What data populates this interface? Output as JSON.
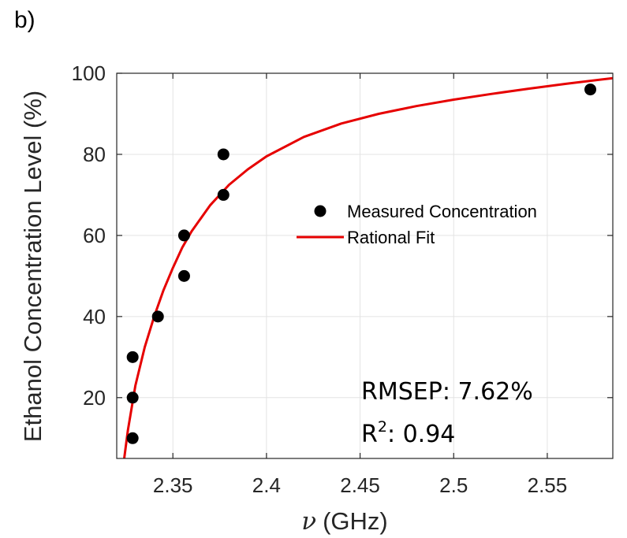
{
  "panel_label": "b)",
  "chart_data": {
    "type": "scatter",
    "xlabel": "(GHz)",
    "xlabel_symbol": "ν",
    "ylabel": "Ethanol Concentration Level (%)",
    "xlim": [
      2.32,
      2.585
    ],
    "ylim": [
      5,
      100
    ],
    "xticks": [
      "2.35",
      "2.4",
      "2.45",
      "2.5",
      "2.55"
    ],
    "yticks": [
      "20",
      "40",
      "60",
      "80",
      "100"
    ],
    "xtick_values": [
      2.35,
      2.4,
      2.45,
      2.5,
      2.55
    ],
    "ytick_values": [
      20,
      40,
      60,
      80,
      100
    ],
    "grid": true,
    "legend_position": "right",
    "series": [
      {
        "name": "Measured Concentration",
        "kind": "points",
        "color": "#000000",
        "points": [
          {
            "x": 2.3285,
            "y": 10
          },
          {
            "x": 2.3285,
            "y": 20
          },
          {
            "x": 2.3285,
            "y": 30
          },
          {
            "x": 2.342,
            "y": 40
          },
          {
            "x": 2.356,
            "y": 50
          },
          {
            "x": 2.356,
            "y": 60
          },
          {
            "x": 2.377,
            "y": 70
          },
          {
            "x": 2.377,
            "y": 80
          },
          {
            "x": 2.573,
            "y": 96
          }
        ]
      },
      {
        "name": "Rational Fit",
        "kind": "line",
        "color": "#e60000",
        "points": [
          {
            "x": 2.324,
            "y": 5
          },
          {
            "x": 2.326,
            "y": 12
          },
          {
            "x": 2.33,
            "y": 23
          },
          {
            "x": 2.335,
            "y": 32.5
          },
          {
            "x": 2.34,
            "y": 40
          },
          {
            "x": 2.345,
            "y": 46.5
          },
          {
            "x": 2.35,
            "y": 52
          },
          {
            "x": 2.355,
            "y": 57
          },
          {
            "x": 2.36,
            "y": 61
          },
          {
            "x": 2.37,
            "y": 67.5
          },
          {
            "x": 2.38,
            "y": 72.5
          },
          {
            "x": 2.39,
            "y": 76.3
          },
          {
            "x": 2.4,
            "y": 79.5
          },
          {
            "x": 2.42,
            "y": 84.3
          },
          {
            "x": 2.44,
            "y": 87.6
          },
          {
            "x": 2.46,
            "y": 90
          },
          {
            "x": 2.48,
            "y": 91.9
          },
          {
            "x": 2.5,
            "y": 93.5
          },
          {
            "x": 2.52,
            "y": 94.9
          },
          {
            "x": 2.54,
            "y": 96.2
          },
          {
            "x": 2.56,
            "y": 97.4
          },
          {
            "x": 2.585,
            "y": 98.8
          }
        ]
      }
    ],
    "annotations": {
      "rmsep": "RMSEP: 7.62%",
      "r2_base": "R",
      "r2_sup": "2",
      "r2_rest": ": 0.94"
    }
  }
}
